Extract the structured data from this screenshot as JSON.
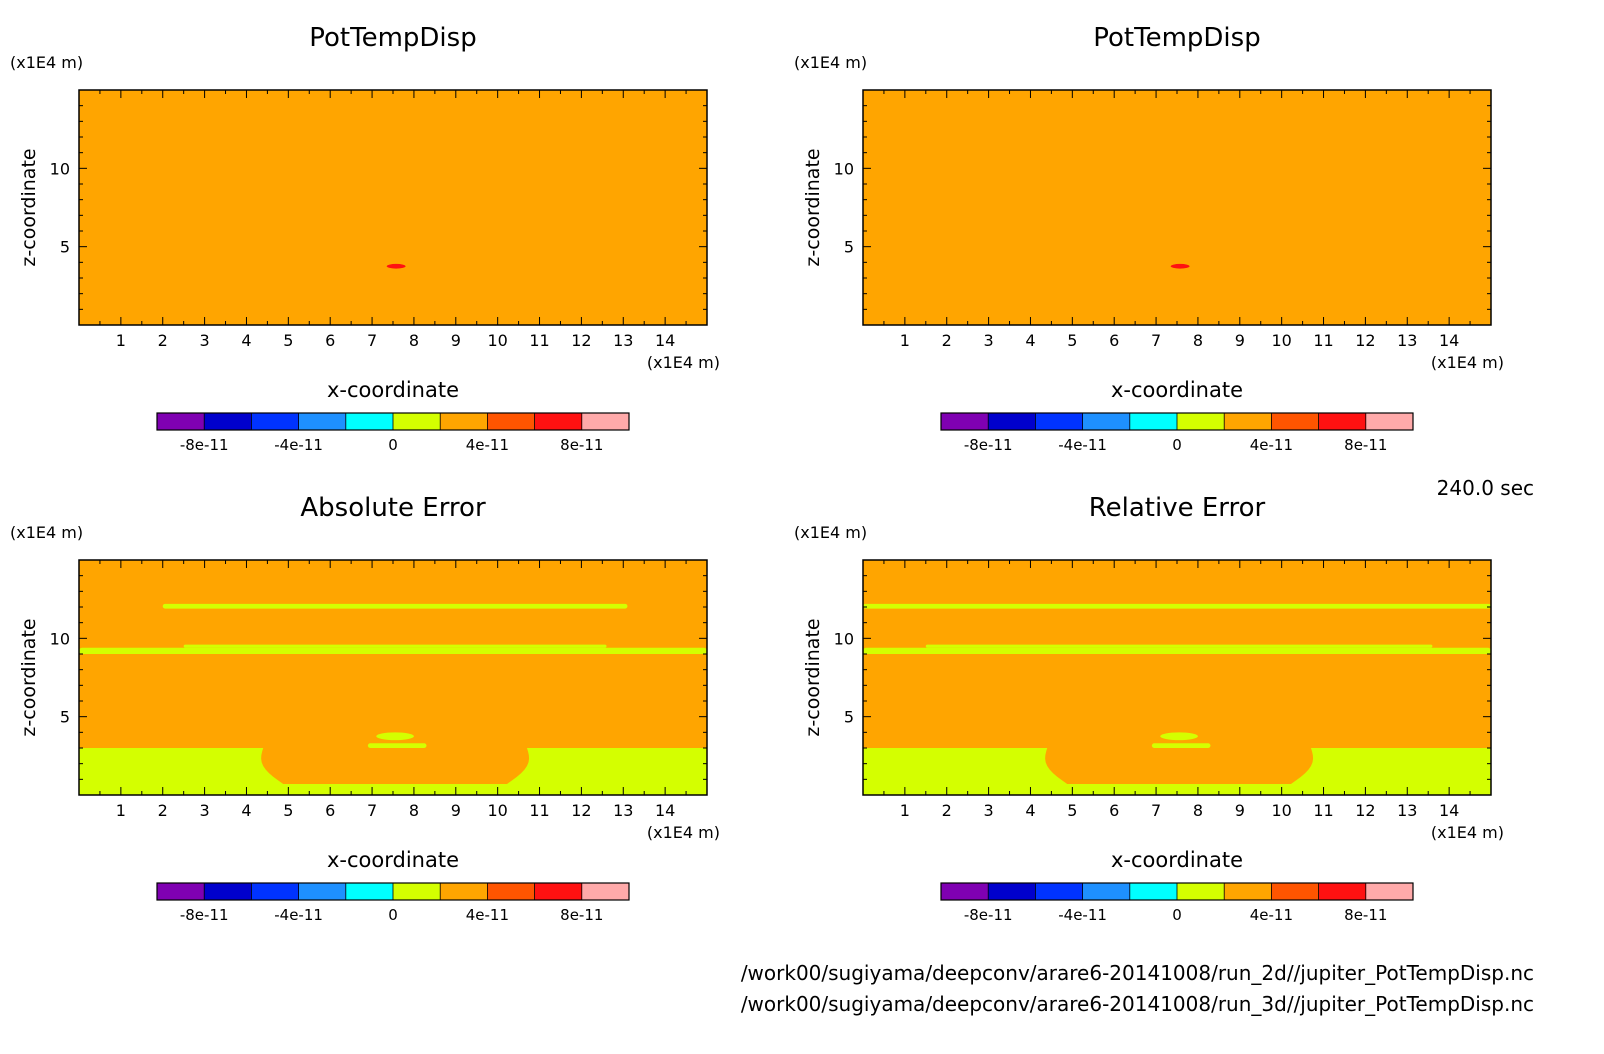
{
  "time_label": "240.0 sec",
  "files": [
    "/work00/sugiyama/deepconv/arare6-20141008/run_2d//jupiter_PotTempDisp.nc",
    "/work00/sugiyama/deepconv/arare6-20141008/run_3d//jupiter_PotTempDisp.nc"
  ],
  "colorbar": {
    "colors": [
      "#7f00b2",
      "#0000cc",
      "#0033ff",
      "#1e90ff",
      "#00ffff",
      "#d4ff00",
      "#ffa500",
      "#ff5500",
      "#ff1111",
      "#ffaaaa"
    ],
    "tick_labels": [
      "-8e-11",
      "-4e-11",
      "0",
      "4e-11",
      "8e-11"
    ],
    "tick_values": [
      -8e-11,
      -4e-11,
      0,
      4e-11,
      8e-11
    ],
    "range": [
      -1e-10,
      1e-10
    ]
  },
  "chart_data": [
    {
      "type": "heatmap",
      "title": "PotTempDisp",
      "xlabel": "x-coordinate",
      "ylabel": "z-coordinate",
      "x_unit": "(x1E4 m)",
      "y_unit": "(x1E4 m)",
      "xlim": [
        0,
        15
      ],
      "ylim": [
        0,
        15
      ],
      "x_ticks": [
        1,
        2,
        3,
        4,
        5,
        6,
        7,
        8,
        9,
        10,
        11,
        12,
        13,
        14
      ],
      "y_ticks": [
        5,
        10
      ],
      "background_value": 2e-11,
      "features": [
        {
          "kind": "blob",
          "x": [
            7.35,
            7.8
          ],
          "z": [
            3.6,
            3.9
          ],
          "value": 6e-11
        }
      ]
    },
    {
      "type": "heatmap",
      "title": "PotTempDisp",
      "xlabel": "x-coordinate",
      "ylabel": "z-coordinate",
      "x_unit": "(x1E4 m)",
      "y_unit": "(x1E4 m)",
      "xlim": [
        0,
        15
      ],
      "ylim": [
        0,
        15
      ],
      "x_ticks": [
        1,
        2,
        3,
        4,
        5,
        6,
        7,
        8,
        9,
        10,
        11,
        12,
        13,
        14
      ],
      "y_ticks": [
        5,
        10
      ],
      "background_value": 2e-11,
      "features": [
        {
          "kind": "blob",
          "x": [
            7.35,
            7.8
          ],
          "z": [
            3.6,
            3.9
          ],
          "value": 6e-11
        }
      ]
    },
    {
      "type": "heatmap",
      "title": "Absolute Error",
      "xlabel": "x-coordinate",
      "ylabel": "z-coordinate",
      "x_unit": "(x1E4 m)",
      "y_unit": "(x1E4 m)",
      "xlim": [
        0,
        15
      ],
      "ylim": [
        0,
        15
      ],
      "x_ticks": [
        1,
        2,
        3,
        4,
        5,
        6,
        7,
        8,
        9,
        10,
        11,
        12,
        13,
        14
      ],
      "y_ticks": [
        5,
        10
      ],
      "background_value": 2e-11,
      "features": [
        {
          "kind": "band",
          "x": [
            2.0,
            13.1
          ],
          "z": [
            11.9,
            12.2
          ],
          "value": 0
        },
        {
          "kind": "band",
          "x": [
            0,
            15
          ],
          "z": [
            9.0,
            9.4
          ],
          "value": 0
        },
        {
          "kind": "band",
          "x": [
            2.5,
            12.6
          ],
          "z": [
            9.4,
            9.6
          ],
          "value": 0
        },
        {
          "kind": "bottom_region",
          "z_top": 3.0,
          "cut_x": [
            4.4,
            10.7
          ],
          "cut_z_bottom": 0.7,
          "value": 0
        },
        {
          "kind": "blob",
          "x": [
            7.1,
            8.0
          ],
          "z": [
            3.5,
            4.0
          ],
          "value": 0
        },
        {
          "kind": "band",
          "x": [
            6.9,
            8.3
          ],
          "z": [
            3.0,
            3.3
          ],
          "value": 0
        }
      ]
    },
    {
      "type": "heatmap",
      "title": "Relative Error",
      "xlabel": "x-coordinate",
      "ylabel": "z-coordinate",
      "x_unit": "(x1E4 m)",
      "y_unit": "(x1E4 m)",
      "xlim": [
        0,
        15
      ],
      "ylim": [
        0,
        15
      ],
      "x_ticks": [
        1,
        2,
        3,
        4,
        5,
        6,
        7,
        8,
        9,
        10,
        11,
        12,
        13,
        14
      ],
      "y_ticks": [
        5,
        10
      ],
      "background_value": 2e-11,
      "features": [
        {
          "kind": "band",
          "x": [
            0,
            15
          ],
          "z": [
            11.9,
            12.2
          ],
          "value": 0
        },
        {
          "kind": "band",
          "x": [
            0,
            15
          ],
          "z": [
            9.0,
            9.4
          ],
          "value": 0
        },
        {
          "kind": "band",
          "x": [
            1.5,
            13.6
          ],
          "z": [
            9.4,
            9.6
          ],
          "value": 0
        },
        {
          "kind": "bottom_region",
          "z_top": 3.0,
          "cut_x": [
            4.4,
            10.7
          ],
          "cut_z_bottom": 0.7,
          "value": 0
        },
        {
          "kind": "blob",
          "x": [
            7.1,
            8.0
          ],
          "z": [
            3.5,
            4.0
          ],
          "value": 0
        },
        {
          "kind": "band",
          "x": [
            6.9,
            8.3
          ],
          "z": [
            3.0,
            3.3
          ],
          "value": 0
        }
      ]
    }
  ]
}
